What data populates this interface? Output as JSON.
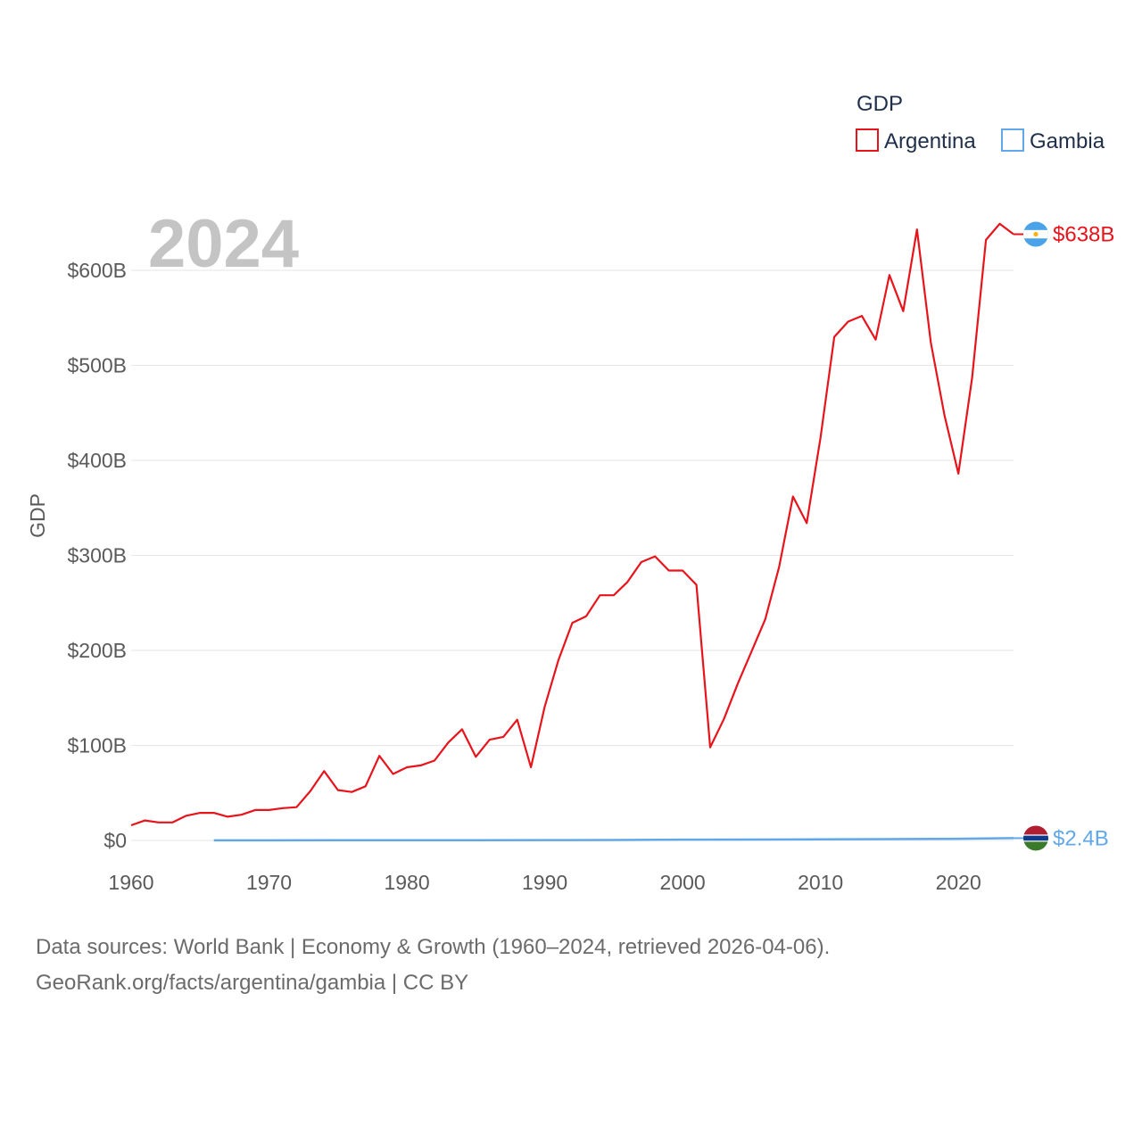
{
  "chart_data": {
    "type": "line",
    "year_display": "2024",
    "ylabel": "GDP",
    "legend": {
      "title": "GDP",
      "position": "top-right"
    },
    "x_ticks": [
      1960,
      1970,
      1980,
      1990,
      2000,
      2010,
      2020
    ],
    "xlim": [
      1960,
      2024
    ],
    "y_ticks": [
      {
        "value": 0,
        "label": "$0"
      },
      {
        "value": 100,
        "label": "$100B"
      },
      {
        "value": 200,
        "label": "$200B"
      },
      {
        "value": 300,
        "label": "$300B"
      },
      {
        "value": 400,
        "label": "$400B"
      },
      {
        "value": 500,
        "label": "$500B"
      },
      {
        "value": 600,
        "label": "$600B"
      }
    ],
    "ylim": [
      0,
      660
    ],
    "y_unit": "billions USD",
    "series": [
      {
        "name": "Argentina",
        "color": "#e8141c",
        "end_label": "$638B",
        "flag": "argentina-flag",
        "x": [
          1960,
          1961,
          1962,
          1963,
          1964,
          1965,
          1966,
          1967,
          1968,
          1969,
          1970,
          1971,
          1972,
          1973,
          1974,
          1975,
          1976,
          1977,
          1978,
          1979,
          1980,
          1981,
          1982,
          1983,
          1984,
          1985,
          1986,
          1987,
          1988,
          1989,
          1990,
          1991,
          1992,
          1993,
          1994,
          1995,
          1996,
          1997,
          1998,
          1999,
          2000,
          2001,
          2002,
          2003,
          2004,
          2005,
          2006,
          2007,
          2008,
          2009,
          2010,
          2011,
          2012,
          2013,
          2014,
          2015,
          2016,
          2017,
          2018,
          2019,
          2020,
          2021,
          2022,
          2023,
          2024
        ],
        "values": [
          16,
          21,
          19,
          19,
          26,
          29,
          29,
          25,
          27,
          32,
          32,
          34,
          35,
          52,
          73,
          53,
          51,
          57,
          89,
          70,
          77,
          79,
          84,
          103,
          117,
          88,
          106,
          109,
          127,
          77,
          141,
          190,
          229,
          236,
          258,
          258,
          272,
          293,
          299,
          284,
          284,
          269,
          98,
          128,
          165,
          199,
          233,
          288,
          362,
          334,
          424,
          530,
          546,
          552,
          527,
          595,
          557,
          643,
          524,
          447,
          386,
          487,
          632,
          649,
          638
        ]
      },
      {
        "name": "Gambia",
        "color": "#62a8e8",
        "end_label": "$2.4B",
        "flag": "gambia-flag",
        "x": [
          1966,
          1970,
          1975,
          1980,
          1985,
          1990,
          1995,
          2000,
          2005,
          2010,
          2015,
          2020,
          2024
        ],
        "values": [
          0.1,
          0.1,
          0.2,
          0.3,
          0.3,
          0.4,
          0.5,
          0.8,
          0.9,
          1.2,
          1.4,
          1.8,
          2.4
        ]
      }
    ]
  },
  "source": {
    "line1": "Data sources: World Bank | Economy & Growth (1960–2024, retrieved 2026-04-06).",
    "line2": "GeoRank.org/facts/argentina/gambia | CC BY"
  }
}
